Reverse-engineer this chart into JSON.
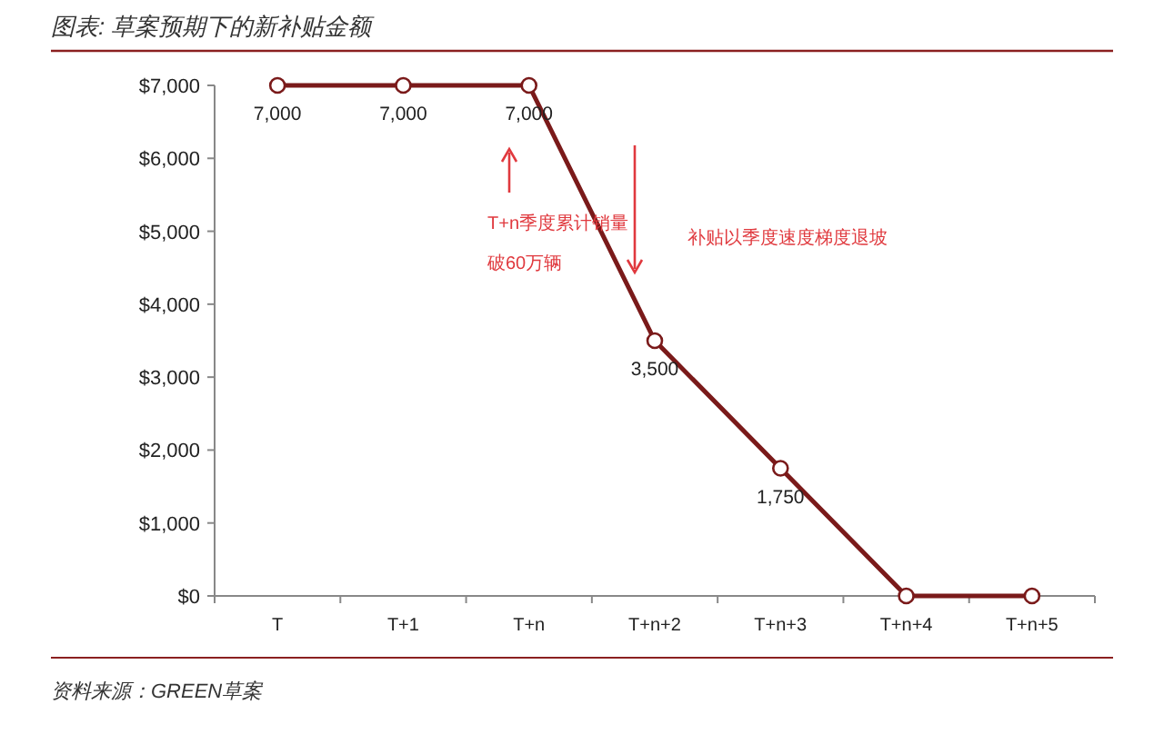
{
  "chart_data": {
    "type": "line",
    "title": "图表: 草案预期下的新补贴金额",
    "categories": [
      "T",
      "T+1",
      "T+n",
      "T+n+2",
      "T+n+3",
      "T+n+4",
      "T+n+5"
    ],
    "series": [
      {
        "color": "#7a1a1a",
        "values": [
          7000,
          7000,
          7000,
          3500,
          1750,
          0,
          0
        ],
        "value_labels": [
          "7,000",
          "7,000",
          "7,000",
          "3,500",
          "1,750",
          null,
          null
        ]
      }
    ],
    "ylim": [
      0,
      7000
    ],
    "yticks": [
      {
        "value": 0,
        "label": "$0"
      },
      {
        "value": 1000,
        "label": "$1,000"
      },
      {
        "value": 2000,
        "label": "$2,000"
      },
      {
        "value": 3000,
        "label": "$3,000"
      },
      {
        "value": 4000,
        "label": "$4,000"
      },
      {
        "value": 5000,
        "label": "$5,000"
      },
      {
        "value": 6000,
        "label": "$6,000"
      },
      {
        "value": 7000,
        "label": "$7,000"
      }
    ],
    "marker": "circle",
    "line_style": "solid",
    "grid": false,
    "annotations": [
      "T+n季度累计销量破60万辆",
      "补贴以季度速度梯度退坡",
      "资料来源：GREEN草案"
    ]
  }
}
